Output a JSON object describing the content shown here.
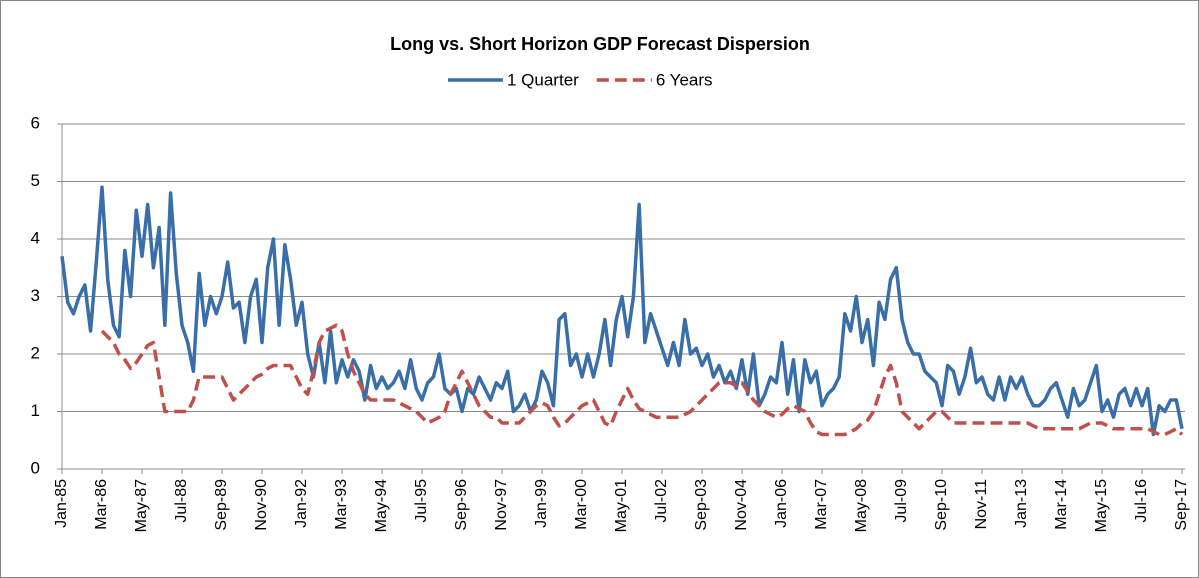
{
  "chart_data": {
    "type": "line",
    "title": "Long vs. Short Horizon GDP Forecast Dispersion",
    "categories": [
      "Jan-85",
      null,
      null,
      null,
      null,
      null,
      null,
      "Mar-86",
      null,
      null,
      null,
      null,
      null,
      null,
      "May-87",
      null,
      null,
      null,
      null,
      null,
      null,
      "Jul-88",
      null,
      null,
      null,
      null,
      null,
      null,
      "Sep-89",
      null,
      null,
      null,
      null,
      null,
      null,
      "Nov-90",
      null,
      null,
      null,
      null,
      null,
      null,
      "Jan-92",
      null,
      null,
      null,
      null,
      null,
      null,
      "Mar-93",
      null,
      null,
      null,
      null,
      null,
      null,
      "May-94",
      null,
      null,
      null,
      null,
      null,
      null,
      "Jul-95",
      null,
      null,
      null,
      null,
      null,
      null,
      "Sep-96",
      null,
      null,
      null,
      null,
      null,
      null,
      "Nov-97",
      null,
      null,
      null,
      null,
      null,
      null,
      "Jan-99",
      null,
      null,
      null,
      null,
      null,
      null,
      "Mar-00",
      null,
      null,
      null,
      null,
      null,
      null,
      "May-01",
      null,
      null,
      null,
      null,
      null,
      null,
      "Jul-02",
      null,
      null,
      null,
      null,
      null,
      null,
      "Sep-03",
      null,
      null,
      null,
      null,
      null,
      null,
      "Nov-04",
      null,
      null,
      null,
      null,
      null,
      null,
      "Jan-06",
      null,
      null,
      null,
      null,
      null,
      null,
      "Mar-07",
      null,
      null,
      null,
      null,
      null,
      null,
      "May-08",
      null,
      null,
      null,
      null,
      null,
      null,
      "Jul-09",
      null,
      null,
      null,
      null,
      null,
      null,
      "Sep-10",
      null,
      null,
      null,
      null,
      null,
      null,
      "Nov-11",
      null,
      null,
      null,
      null,
      null,
      null,
      "Jan-13",
      null,
      null,
      null,
      null,
      null,
      null,
      "Mar-14",
      null,
      null,
      null,
      null,
      null,
      null,
      "May-15",
      null,
      null,
      null,
      null,
      null,
      null,
      "Jul-16",
      null,
      null,
      null,
      null,
      null,
      null,
      "Sep-17"
    ],
    "series": [
      {
        "name": "1 Quarter",
        "color": "#3a6ea8",
        "dashed": false,
        "values": [
          3.7,
          2.9,
          2.7,
          3.0,
          3.2,
          2.4,
          3.6,
          4.9,
          3.3,
          2.5,
          2.3,
          3.8,
          3.0,
          4.5,
          3.7,
          4.6,
          3.5,
          4.2,
          2.5,
          4.8,
          3.4,
          2.5,
          2.2,
          1.7,
          3.4,
          2.5,
          3.0,
          2.7,
          3.0,
          3.6,
          2.8,
          2.9,
          2.2,
          3.0,
          3.3,
          2.2,
          3.5,
          4.0,
          2.5,
          3.9,
          3.3,
          2.5,
          2.9,
          2.0,
          1.6,
          2.2,
          1.5,
          2.4,
          1.5,
          1.9,
          1.6,
          1.9,
          1.7,
          1.2,
          1.8,
          1.4,
          1.6,
          1.4,
          1.5,
          1.7,
          1.4,
          1.9,
          1.4,
          1.2,
          1.5,
          1.6,
          2.0,
          1.4,
          1.3,
          1.4,
          1.0,
          1.4,
          1.3,
          1.6,
          1.4,
          1.2,
          1.5,
          1.4,
          1.7,
          1.0,
          1.1,
          1.3,
          1.0,
          1.2,
          1.7,
          1.5,
          1.1,
          2.6,
          2.7,
          1.8,
          2.0,
          1.6,
          2.0,
          1.6,
          2.0,
          2.6,
          1.8,
          2.6,
          3.0,
          2.3,
          3.0,
          4.6,
          2.2,
          2.7,
          2.4,
          2.1,
          1.8,
          2.2,
          1.8,
          2.6,
          2.0,
          2.1,
          1.8,
          2.0,
          1.6,
          1.8,
          1.5,
          1.7,
          1.4,
          1.9,
          1.3,
          2.0,
          1.1,
          1.3,
          1.6,
          1.5,
          2.2,
          1.3,
          1.9,
          1.0,
          1.9,
          1.5,
          1.7,
          1.1,
          1.3,
          1.4,
          1.6,
          2.7,
          2.4,
          3.0,
          2.2,
          2.6,
          1.8,
          2.9,
          2.6,
          3.3,
          3.5,
          2.6,
          2.2,
          2.0,
          2.0,
          1.7,
          1.6,
          1.5,
          1.1,
          1.8,
          1.7,
          1.3,
          1.6,
          2.1,
          1.5,
          1.6,
          1.3,
          1.2,
          1.6,
          1.2,
          1.6,
          1.4,
          1.6,
          1.3,
          1.1,
          1.1,
          1.2,
          1.4,
          1.5,
          1.2,
          0.9,
          1.4,
          1.1,
          1.2,
          1.5,
          1.8,
          1.0,
          1.2,
          0.9,
          1.3,
          1.4,
          1.1,
          1.4,
          1.1,
          1.4,
          0.6,
          1.1,
          1.0,
          1.2,
          1.2,
          0.7
        ]
      },
      {
        "name": "6 Years",
        "color": "#c0504d",
        "dashed": true,
        "values": [
          null,
          null,
          null,
          null,
          null,
          null,
          null,
          2.4,
          2.3,
          2.2,
          2.0,
          1.9,
          1.75,
          1.85,
          2.0,
          2.15,
          2.2,
          1.6,
          1.0,
          1.0,
          1.0,
          1.0,
          1.0,
          1.2,
          1.6,
          1.6,
          1.6,
          1.6,
          1.6,
          1.4,
          1.2,
          1.3,
          1.4,
          1.5,
          1.6,
          1.65,
          1.75,
          1.8,
          1.8,
          1.8,
          1.8,
          1.6,
          1.4,
          1.3,
          1.7,
          2.2,
          2.4,
          2.45,
          2.5,
          2.4,
          2.0,
          1.7,
          1.5,
          1.3,
          1.2,
          1.2,
          1.2,
          1.2,
          1.2,
          1.15,
          1.1,
          1.05,
          1.0,
          0.9,
          0.8,
          0.85,
          0.9,
          1.0,
          1.3,
          1.5,
          1.7,
          1.5,
          1.3,
          1.1,
          1.0,
          0.9,
          0.9,
          0.8,
          0.8,
          0.8,
          0.8,
          0.9,
          1.0,
          1.1,
          1.15,
          1.1,
          0.9,
          0.75,
          0.8,
          0.9,
          1.0,
          1.1,
          1.15,
          1.2,
          1.0,
          0.8,
          0.75,
          1.0,
          1.2,
          1.4,
          1.2,
          1.05,
          1.0,
          0.95,
          0.9,
          0.9,
          0.9,
          0.9,
          0.9,
          0.95,
          1.0,
          1.1,
          1.2,
          1.3,
          1.4,
          1.5,
          1.5,
          1.5,
          1.45,
          1.5,
          1.35,
          1.2,
          1.1,
          1.0,
          0.95,
          0.9,
          0.95,
          1.05,
          1.1,
          1.05,
          1.0,
          0.8,
          0.65,
          0.6,
          0.6,
          0.6,
          0.6,
          0.6,
          0.65,
          0.7,
          0.8,
          0.85,
          1.0,
          1.3,
          1.6,
          1.8,
          1.5,
          1.0,
          0.9,
          0.8,
          0.7,
          0.8,
          0.9,
          1.0,
          1.0,
          0.9,
          0.8,
          0.8,
          0.8,
          0.8,
          0.8,
          0.8,
          0.8,
          0.8,
          0.8,
          0.8,
          0.8,
          0.8,
          0.8,
          0.8,
          0.75,
          0.7,
          0.7,
          0.7,
          0.7,
          0.7,
          0.7,
          0.7,
          0.7,
          0.75,
          0.8,
          0.8,
          0.8,
          0.75,
          0.7,
          0.7,
          0.7,
          0.7,
          0.7,
          0.7,
          0.7,
          0.65,
          0.6,
          0.6,
          0.65,
          0.7,
          0.6
        ]
      }
    ],
    "ylim": [
      0,
      6
    ],
    "yticks": [
      0,
      1,
      2,
      3,
      4,
      5,
      6
    ],
    "grid": true,
    "legend": "top"
  }
}
